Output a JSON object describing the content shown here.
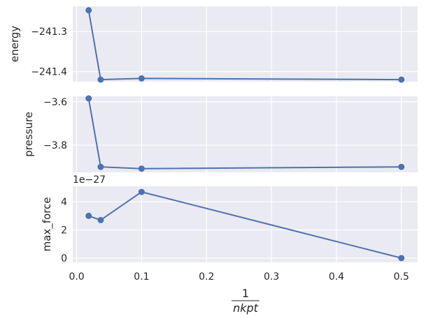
{
  "chart_data": {
    "type": "line",
    "shared_x": true,
    "grid": true,
    "xlabel": {
      "numerator": "1",
      "denominator": "nkpt"
    },
    "x_ticks": [
      0.0,
      0.1,
      0.2,
      0.3,
      0.4,
      0.5
    ],
    "x_tick_labels": [
      "0.0",
      "0.1",
      "0.2",
      "0.3",
      "0.4",
      "0.5"
    ],
    "xlim": [
      -0.006,
      0.525
    ],
    "colors": {
      "series": "#4c72b0",
      "background": "#eaeaf2",
      "grid": "#ffffff"
    },
    "panels": [
      {
        "ylabel": "energy",
        "ylim": [
          -241.425,
          -241.237
        ],
        "y_ticks": [
          -241.3,
          -241.4
        ],
        "y_tick_labels": [
          "−241.3",
          "−241.4"
        ],
        "offset_label": "",
        "series": [
          {
            "x": [
              0.0185,
              0.037,
              0.1,
              0.5
            ],
            "y": [
              -241.247,
              -241.42,
              -241.417,
              -241.42
            ]
          }
        ]
      },
      {
        "ylabel": "pressure",
        "ylim": [
          -3.925,
          -3.575
        ],
        "y_ticks": [
          -3.6,
          -3.8
        ],
        "y_tick_labels": [
          "−3.6",
          "−3.8"
        ],
        "offset_label": "",
        "series": [
          {
            "x": [
              0.0185,
              0.037,
              0.1,
              0.5
            ],
            "y": [
              -3.585,
              -3.9,
              -3.908,
              -3.9
            ]
          }
        ]
      },
      {
        "ylabel": "max_force",
        "ylim": [
          -0.3,
          5.1
        ],
        "y_ticks": [
          0,
          2,
          4
        ],
        "y_tick_labels": [
          "0",
          "2",
          "4"
        ],
        "offset_label": "1e−27",
        "series": [
          {
            "x": [
              0.0185,
              0.037,
              0.1,
              0.5
            ],
            "y": [
              3.0,
              2.7,
              4.7,
              0.0
            ]
          }
        ]
      }
    ]
  }
}
